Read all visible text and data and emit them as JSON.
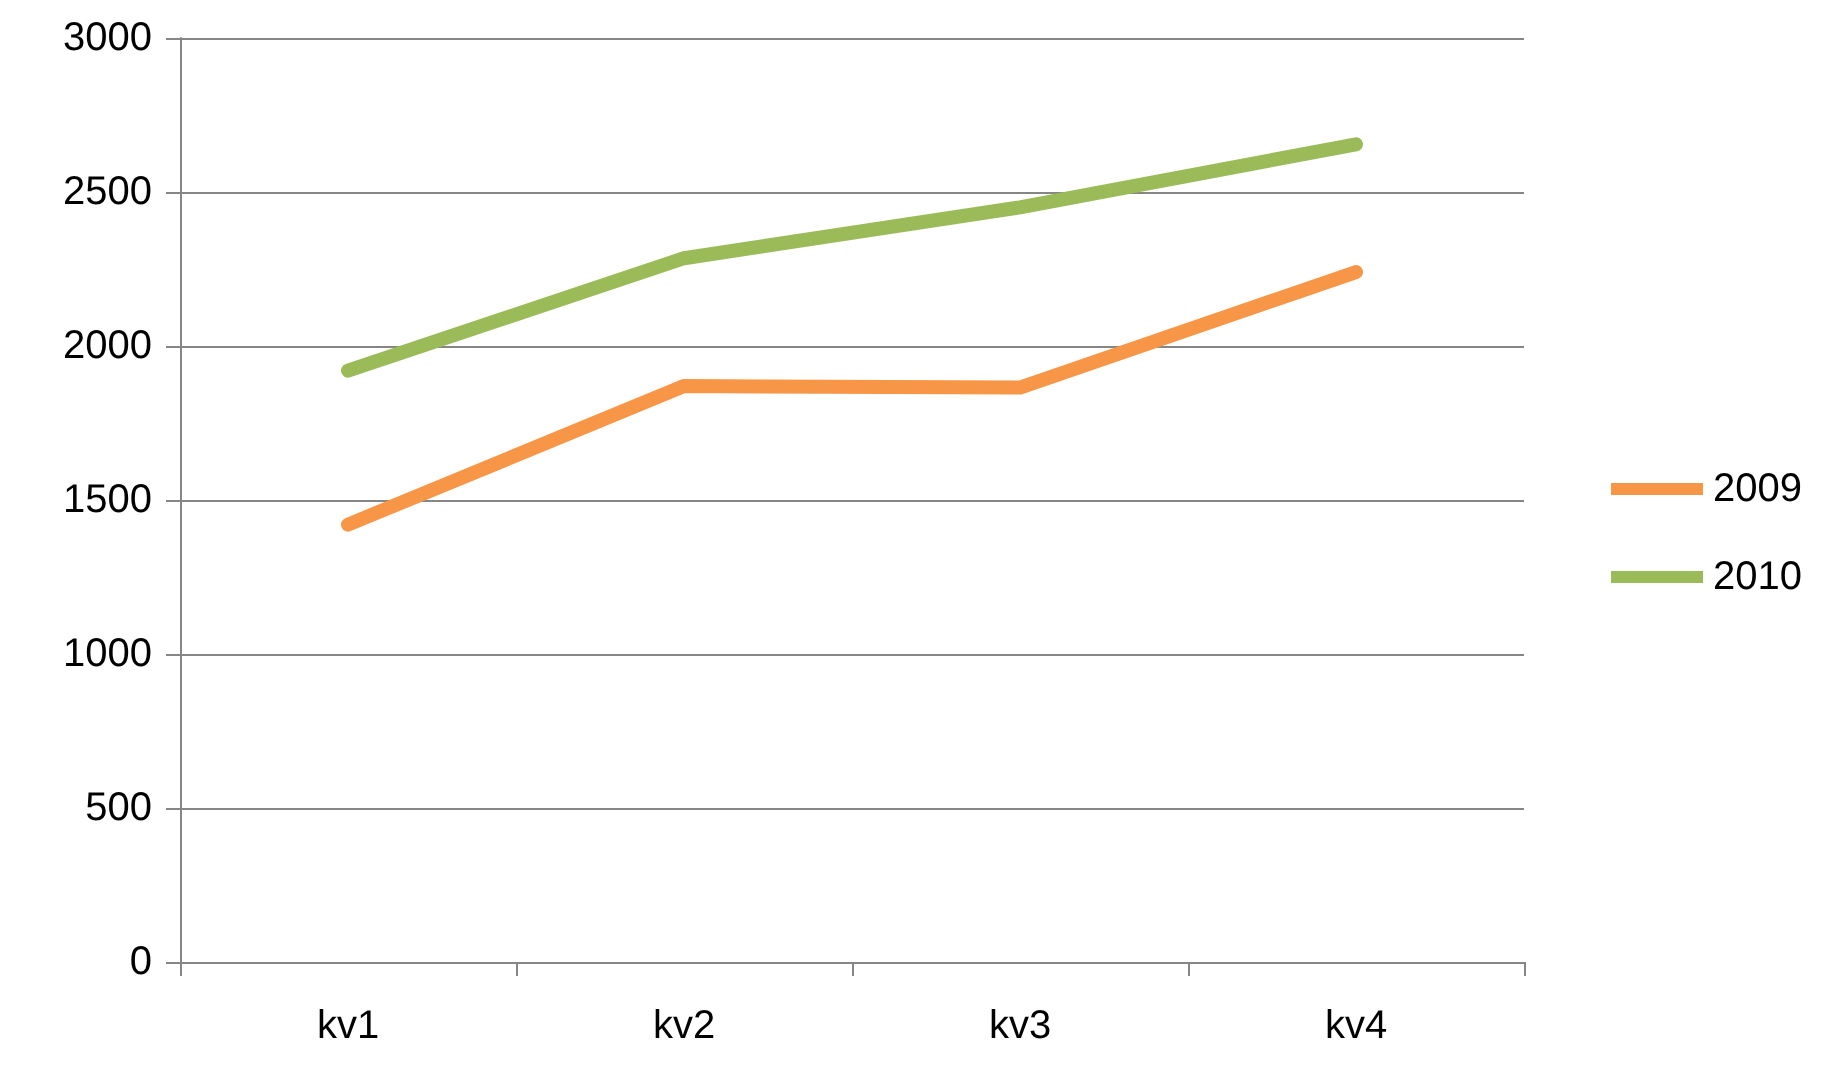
{
  "chart_data": {
    "type": "line",
    "categories": [
      "kv1",
      "kv2",
      "kv3",
      "kv4"
    ],
    "series": [
      {
        "name": "2009",
        "color": "#f79646",
        "values": [
          1420,
          1870,
          1865,
          2240
        ]
      },
      {
        "name": "2010",
        "color": "#9bbb59",
        "values": [
          1920,
          2285,
          2450,
          2655
        ]
      }
    ],
    "ylim": [
      0,
      3000
    ],
    "yticks": [
      0,
      500,
      1000,
      1500,
      2000,
      2500,
      3000
    ],
    "grid": "y",
    "legend": "right",
    "marker": "none",
    "line_style": "solid"
  }
}
